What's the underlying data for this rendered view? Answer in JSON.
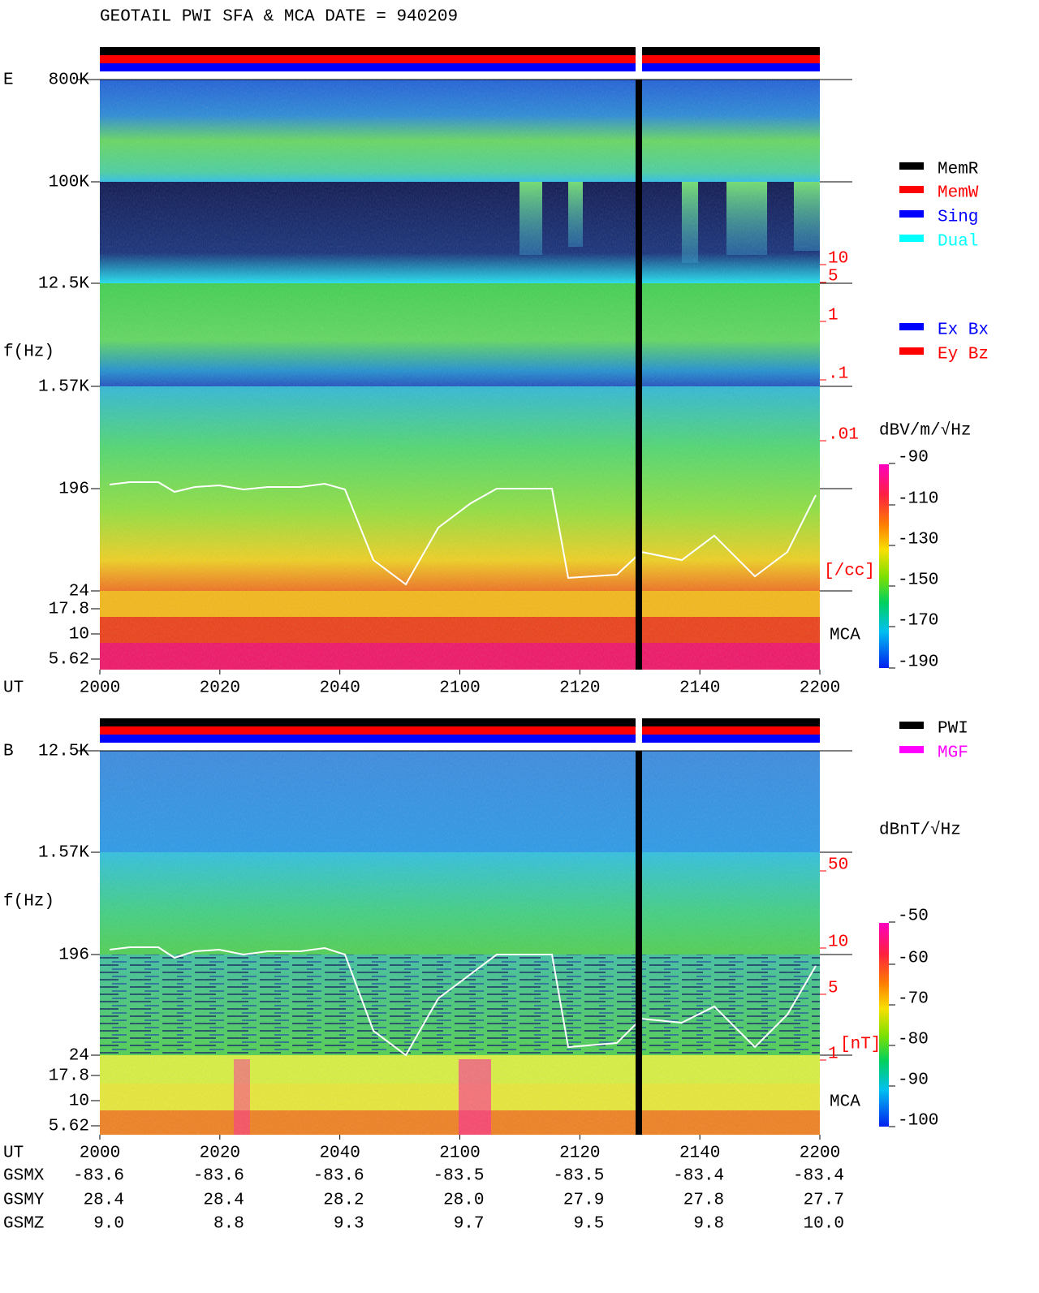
{
  "title": "GEOTAIL  PWI SFA & MCA   DATE = 940209",
  "panels": [
    {
      "label": "E",
      "yticks": [
        "800K",
        "100K",
        "12.5K",
        "1.57K",
        "196",
        "24",
        "17.8",
        "10",
        "5.62"
      ],
      "y_axis_label": "f(Hz)",
      "x_axis_label": "UT",
      "xticks": [
        "2000",
        "2020",
        "2040",
        "2100",
        "2120",
        "2140",
        "2200"
      ],
      "mca_label": "MCA",
      "right_scale": [
        "10",
        "5",
        "1",
        ".1",
        ".01"
      ],
      "right_scale_unit": "[/cc]",
      "colorbar_label": "dBV/m/√Hz",
      "colorbar_ticks": [
        "-90",
        "-110",
        "-130",
        "-150",
        "-170",
        "-190"
      ]
    },
    {
      "label": "B",
      "yticks": [
        "12.5K",
        "1.57K",
        "196",
        "24",
        "17.8",
        "10",
        "5.62"
      ],
      "y_axis_label": "f(Hz)",
      "x_axis_label": "UT",
      "xticks": [
        "2000",
        "2020",
        "2040",
        "2100",
        "2120",
        "2140",
        "2200"
      ],
      "mca_label": "MCA",
      "right_scale": [
        "50",
        "10",
        "5",
        "1"
      ],
      "right_scale_unit": "[nT]",
      "colorbar_label": "dBnT/√Hz",
      "colorbar_ticks": [
        "-50",
        "-60",
        "-70",
        "-80",
        "-90",
        "-100"
      ]
    }
  ],
  "legends": [
    {
      "items": [
        {
          "name": "MemR",
          "color": "#000000"
        },
        {
          "name": "MemW",
          "color": "#ff0000"
        },
        {
          "name": "Sing",
          "color": "#0000ff"
        },
        {
          "name": "Dual",
          "color": "#00ffff"
        }
      ]
    },
    {
      "items": [
        {
          "name": "Ex Bx",
          "color": "#0000ff"
        },
        {
          "name": "Ey Bz",
          "color": "#ff0000"
        }
      ]
    },
    {
      "items": [
        {
          "name": "PWI",
          "color": "#000000"
        },
        {
          "name": "MGF",
          "color": "#ff00ff"
        }
      ]
    }
  ],
  "orbit": {
    "rows": [
      {
        "label": "GSMX",
        "values": [
          "-83.6",
          "-83.6",
          "-83.6",
          "-83.5",
          "-83.5",
          "-83.4",
          "-83.4"
        ]
      },
      {
        "label": "GSMY",
        "values": [
          "28.4",
          "28.4",
          "28.2",
          "28.0",
          "27.9",
          "27.8",
          "27.7"
        ]
      },
      {
        "label": "GSMZ",
        "values": [
          "9.0",
          "8.8",
          "9.3",
          "9.7",
          "9.5",
          "9.8",
          "10.0"
        ]
      }
    ]
  }
}
